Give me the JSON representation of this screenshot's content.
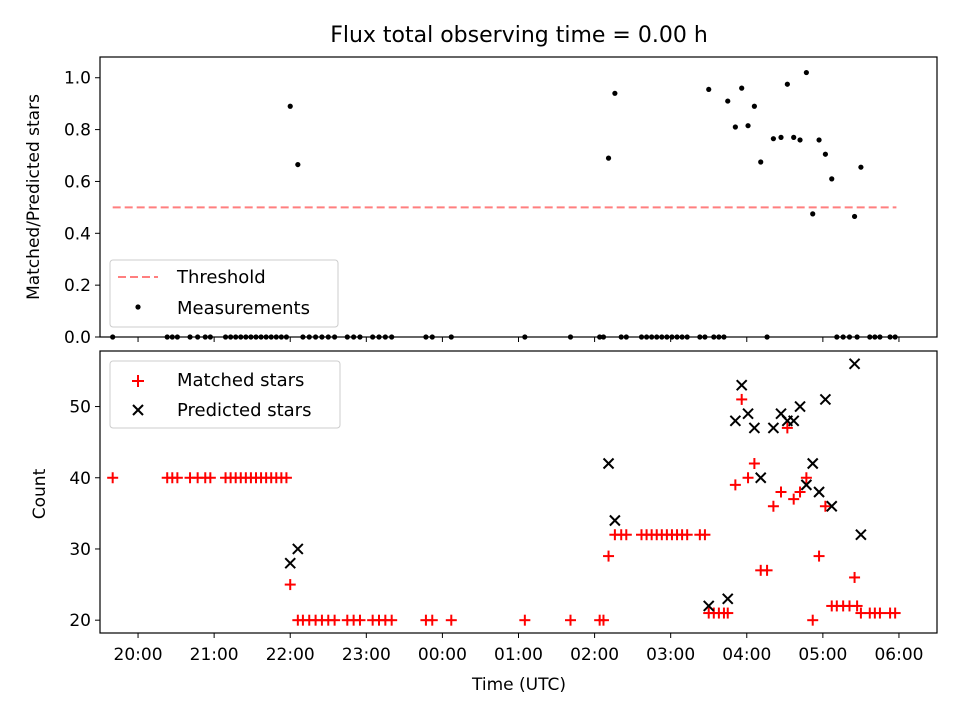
{
  "chart_data": [
    {
      "type": "scatter",
      "title": "Flux total observing time = 0.00 h",
      "ylabel": "Matched/Predicted stars",
      "xlabel": "",
      "xlim": [
        19.5,
        6.5
      ],
      "ylim": [
        0.0,
        1.08
      ],
      "yticks": [
        0.0,
        0.2,
        0.4,
        0.6,
        0.8,
        1.0
      ],
      "ytick_labels": [
        "0.0",
        "0.2",
        "0.4",
        "0.6",
        "0.8",
        "1.0"
      ],
      "legend_position": "lower left",
      "colors": {
        "threshold": "#ff7f7f",
        "measurements": "#000000"
      },
      "series": [
        {
          "name": "Threshold",
          "kind": "dashed-line",
          "x": [
            "19:40",
            "05:58"
          ],
          "values": [
            0.5,
            0.5
          ]
        },
        {
          "name": "Measurements",
          "kind": "dots",
          "points": [
            [
              "19:40",
              0.0
            ],
            [
              "20:23",
              0.0
            ],
            [
              "20:27",
              0.0
            ],
            [
              "20:31",
              0.0
            ],
            [
              "20:41",
              0.0
            ],
            [
              "20:47",
              0.0
            ],
            [
              "20:53",
              0.0
            ],
            [
              "20:57",
              0.0
            ],
            [
              "21:09",
              0.0
            ],
            [
              "21:13",
              0.0
            ],
            [
              "21:17",
              0.0
            ],
            [
              "21:21",
              0.0
            ],
            [
              "21:25",
              0.0
            ],
            [
              "21:29",
              0.0
            ],
            [
              "21:33",
              0.0
            ],
            [
              "21:37",
              0.0
            ],
            [
              "21:41",
              0.0
            ],
            [
              "21:45",
              0.0
            ],
            [
              "21:49",
              0.0
            ],
            [
              "21:53",
              0.0
            ],
            [
              "21:57",
              0.0
            ],
            [
              "22:00",
              0.89
            ],
            [
              "22:06",
              0.665
            ],
            [
              "22:10",
              0.0
            ],
            [
              "22:15",
              0.0
            ],
            [
              "22:20",
              0.0
            ],
            [
              "22:25",
              0.0
            ],
            [
              "22:30",
              0.0
            ],
            [
              "22:35",
              0.0
            ],
            [
              "22:45",
              0.0
            ],
            [
              "22:50",
              0.0
            ],
            [
              "22:55",
              0.0
            ],
            [
              "23:05",
              0.0
            ],
            [
              "23:10",
              0.0
            ],
            [
              "23:15",
              0.0
            ],
            [
              "23:20",
              0.0
            ],
            [
              "23:47",
              0.0
            ],
            [
              "23:52",
              0.0
            ],
            [
              "00:07",
              0.0
            ],
            [
              "01:05",
              0.0
            ],
            [
              "01:41",
              0.0
            ],
            [
              "02:04",
              0.0
            ],
            [
              "02:07",
              0.0
            ],
            [
              "02:11",
              0.69
            ],
            [
              "02:16",
              0.94
            ],
            [
              "02:21",
              0.0
            ],
            [
              "02:25",
              0.0
            ],
            [
              "02:37",
              0.0
            ],
            [
              "02:41",
              0.0
            ],
            [
              "02:45",
              0.0
            ],
            [
              "02:49",
              0.0
            ],
            [
              "02:53",
              0.0
            ],
            [
              "02:57",
              0.0
            ],
            [
              "03:01",
              0.0
            ],
            [
              "03:05",
              0.0
            ],
            [
              "03:09",
              0.0
            ],
            [
              "03:13",
              0.0
            ],
            [
              "03:23",
              0.0
            ],
            [
              "03:27",
              0.0
            ],
            [
              "03:30",
              0.955
            ],
            [
              "03:34",
              0.0
            ],
            [
              "03:38",
              0.0
            ],
            [
              "03:42",
              0.0
            ],
            [
              "03:45",
              0.91
            ],
            [
              "03:51",
              0.81
            ],
            [
              "03:56",
              0.96
            ],
            [
              "04:01",
              0.815
            ],
            [
              "04:06",
              0.89
            ],
            [
              "04:11",
              0.675
            ],
            [
              "04:16",
              0.0
            ],
            [
              "04:21",
              0.765
            ],
            [
              "04:27",
              0.77
            ],
            [
              "04:32",
              0.975
            ],
            [
              "04:37",
              0.77
            ],
            [
              "04:42",
              0.76
            ],
            [
              "04:47",
              1.02
            ],
            [
              "04:52",
              0.475
            ],
            [
              "04:57",
              0.76
            ],
            [
              "05:02",
              0.705
            ],
            [
              "05:07",
              0.61
            ],
            [
              "05:11",
              0.0
            ],
            [
              "05:16",
              0.0
            ],
            [
              "05:21",
              0.0
            ],
            [
              "05:25",
              0.465
            ],
            [
              "05:27",
              0.0
            ],
            [
              "05:30",
              0.655
            ],
            [
              "05:37",
              0.0
            ],
            [
              "05:41",
              0.0
            ],
            [
              "05:45",
              0.0
            ],
            [
              "05:53",
              0.0
            ],
            [
              "05:57",
              0.0
            ]
          ]
        }
      ]
    },
    {
      "type": "scatter",
      "title": "",
      "ylabel": "Count",
      "xlabel": "Time (UTC)",
      "xlim": [
        19.5,
        6.5
      ],
      "ylim": [
        18.2,
        57.8
      ],
      "yticks": [
        20,
        30,
        40,
        50
      ],
      "ytick_labels": [
        "20",
        "30",
        "40",
        "50"
      ],
      "xticks": [
        "20:00",
        "21:00",
        "22:00",
        "23:00",
        "00:00",
        "01:00",
        "02:00",
        "03:00",
        "04:00",
        "05:00",
        "06:00"
      ],
      "legend_position": "upper left",
      "colors": {
        "matched": "#ff0000",
        "predicted": "#000000"
      },
      "series": [
        {
          "name": "Matched stars",
          "marker": "plus",
          "points": [
            [
              "19:40",
              40
            ],
            [
              "20:23",
              40
            ],
            [
              "20:27",
              40
            ],
            [
              "20:31",
              40
            ],
            [
              "20:41",
              40
            ],
            [
              "20:47",
              40
            ],
            [
              "20:53",
              40
            ],
            [
              "20:57",
              40
            ],
            [
              "21:09",
              40
            ],
            [
              "21:13",
              40
            ],
            [
              "21:17",
              40
            ],
            [
              "21:21",
              40
            ],
            [
              "21:25",
              40
            ],
            [
              "21:29",
              40
            ],
            [
              "21:33",
              40
            ],
            [
              "21:37",
              40
            ],
            [
              "21:41",
              40
            ],
            [
              "21:45",
              40
            ],
            [
              "21:49",
              40
            ],
            [
              "21:53",
              40
            ],
            [
              "21:57",
              40
            ],
            [
              "22:00",
              25
            ],
            [
              "22:06",
              20
            ],
            [
              "22:10",
              20
            ],
            [
              "22:15",
              20
            ],
            [
              "22:20",
              20
            ],
            [
              "22:25",
              20
            ],
            [
              "22:30",
              20
            ],
            [
              "22:35",
              20
            ],
            [
              "22:45",
              20
            ],
            [
              "22:50",
              20
            ],
            [
              "22:55",
              20
            ],
            [
              "23:05",
              20
            ],
            [
              "23:10",
              20
            ],
            [
              "23:15",
              20
            ],
            [
              "23:20",
              20
            ],
            [
              "23:47",
              20
            ],
            [
              "23:52",
              20
            ],
            [
              "00:07",
              20
            ],
            [
              "01:05",
              20
            ],
            [
              "01:41",
              20
            ],
            [
              "02:04",
              20
            ],
            [
              "02:07",
              20
            ],
            [
              "02:11",
              29
            ],
            [
              "02:16",
              32
            ],
            [
              "02:21",
              32
            ],
            [
              "02:25",
              32
            ],
            [
              "02:37",
              32
            ],
            [
              "02:41",
              32
            ],
            [
              "02:45",
              32
            ],
            [
              "02:49",
              32
            ],
            [
              "02:53",
              32
            ],
            [
              "02:57",
              32
            ],
            [
              "03:01",
              32
            ],
            [
              "03:05",
              32
            ],
            [
              "03:09",
              32
            ],
            [
              "03:13",
              32
            ],
            [
              "03:23",
              32
            ],
            [
              "03:27",
              32
            ],
            [
              "03:30",
              21
            ],
            [
              "03:34",
              21
            ],
            [
              "03:38",
              21
            ],
            [
              "03:42",
              21
            ],
            [
              "03:45",
              21
            ],
            [
              "03:51",
              39
            ],
            [
              "03:56",
              51
            ],
            [
              "04:01",
              40
            ],
            [
              "04:06",
              42
            ],
            [
              "04:11",
              27
            ],
            [
              "04:16",
              27
            ],
            [
              "04:21",
              36
            ],
            [
              "04:27",
              38
            ],
            [
              "04:32",
              47
            ],
            [
              "04:37",
              37
            ],
            [
              "04:42",
              38
            ],
            [
              "04:47",
              40
            ],
            [
              "04:52",
              20
            ],
            [
              "04:57",
              29
            ],
            [
              "05:02",
              36
            ],
            [
              "05:07",
              22
            ],
            [
              "05:11",
              22
            ],
            [
              "05:16",
              22
            ],
            [
              "05:21",
              22
            ],
            [
              "05:25",
              26
            ],
            [
              "05:27",
              22
            ],
            [
              "05:30",
              21
            ],
            [
              "05:37",
              21
            ],
            [
              "05:41",
              21
            ],
            [
              "05:45",
              21
            ],
            [
              "05:53",
              21
            ],
            [
              "05:57",
              21
            ]
          ]
        },
        {
          "name": "Predicted stars",
          "marker": "cross",
          "points": [
            [
              "22:00",
              28
            ],
            [
              "22:06",
              30
            ],
            [
              "02:11",
              42
            ],
            [
              "02:16",
              34
            ],
            [
              "03:30",
              22
            ],
            [
              "03:45",
              23
            ],
            [
              "03:51",
              48
            ],
            [
              "03:56",
              53
            ],
            [
              "04:01",
              49
            ],
            [
              "04:06",
              47
            ],
            [
              "04:11",
              40
            ],
            [
              "04:21",
              47
            ],
            [
              "04:27",
              49
            ],
            [
              "04:32",
              48
            ],
            [
              "04:37",
              48
            ],
            [
              "04:42",
              50
            ],
            [
              "04:47",
              39
            ],
            [
              "04:52",
              42
            ],
            [
              "04:57",
              38
            ],
            [
              "05:02",
              51
            ],
            [
              "05:07",
              36
            ],
            [
              "05:25",
              56
            ],
            [
              "05:30",
              32
            ]
          ]
        }
      ]
    }
  ]
}
